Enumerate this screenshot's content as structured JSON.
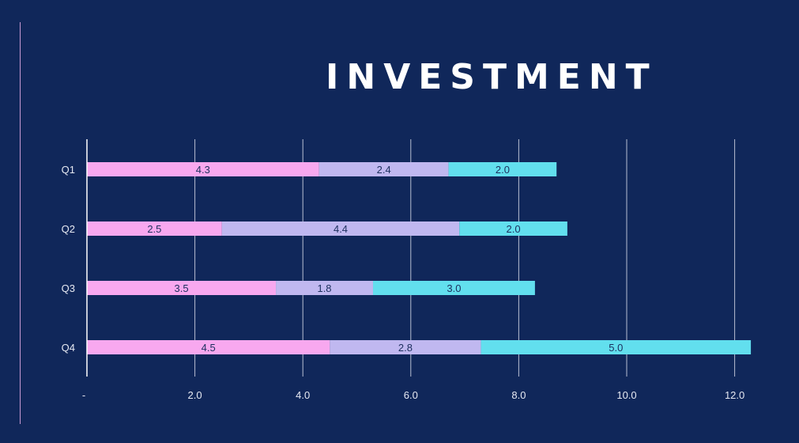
{
  "chart_data": {
    "type": "bar",
    "orientation": "horizontal",
    "stacked": true,
    "title": "INVESTMENT",
    "categories": [
      "Q1",
      "Q2",
      "Q3",
      "Q4"
    ],
    "series": [
      {
        "values": [
          4.3,
          2.5,
          3.5,
          4.5
        ],
        "color": "#f8a8ef"
      },
      {
        "values": [
          2.4,
          4.4,
          1.8,
          2.8
        ],
        "color": "#c0b8f0"
      },
      {
        "values": [
          2.0,
          2.0,
          3.0,
          5.0
        ],
        "color": "#62dfee"
      }
    ],
    "data_labels": [
      [
        "4.3",
        "2.5",
        "3.5",
        "4.5"
      ],
      [
        "2.4",
        "4.4",
        "1.8",
        "2.8"
      ],
      [
        "2.0",
        "2.0",
        "3.0",
        "5.0"
      ]
    ],
    "x_ticks": [
      0,
      2,
      4,
      6,
      8,
      10,
      12
    ],
    "x_tick_labels": [
      "-",
      "2.0",
      "4.0",
      "6.0",
      "8.0",
      "10.0",
      "12.0"
    ],
    "xlim": [
      0,
      12.3
    ],
    "grid": "vertical",
    "legend": "none",
    "colors": {
      "background": "#10275a",
      "grid": "#b9bfd3",
      "axis_text": "#e6e9f2",
      "bar_text": "#1c2f5e"
    }
  }
}
